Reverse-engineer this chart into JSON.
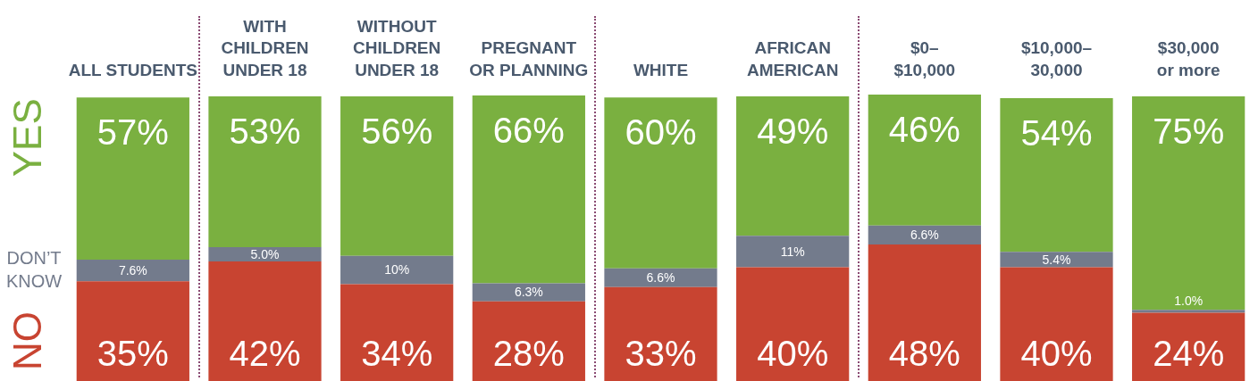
{
  "chart_data": {
    "type": "bar",
    "stacked": true,
    "categories": [
      "ALL STUDENTS",
      "WITH\nCHILDREN\nUNDER 18",
      "WITHOUT\nCHILDREN\nUNDER 18",
      "PREGNANT\nOR PLANNING",
      "WHITE",
      "AFRICAN\nAMERICAN",
      "$0–\n$10,000",
      "$10,000–\n30,000",
      "$30,000\nor more"
    ],
    "series": [
      {
        "name": "NO",
        "color": "#c84431",
        "values": [
          35,
          42,
          34,
          28,
          33,
          40,
          48,
          40,
          24
        ],
        "value_labels": [
          "35%",
          "42%",
          "34%",
          "28%",
          "33%",
          "40%",
          "48%",
          "40%",
          "24%"
        ]
      },
      {
        "name": "DON’T\nKNOW",
        "color": "#737b8c",
        "values": [
          7.6,
          5.0,
          10,
          6.3,
          6.6,
          11,
          6.6,
          5.4,
          1.0
        ],
        "value_labels": [
          "7.6%",
          "5.0%",
          "10%",
          "6.3%",
          "6.6%",
          "11%",
          "6.6%",
          "5.4%",
          "1.0%"
        ]
      },
      {
        "name": "YES",
        "color": "#7ab040",
        "values": [
          57,
          53,
          56,
          66,
          60,
          49,
          46,
          54,
          75
        ],
        "value_labels": [
          "57%",
          "53%",
          "56%",
          "66%",
          "60%",
          "49%",
          "46%",
          "54%",
          "75%"
        ]
      }
    ],
    "ylim": [
      0,
      100.6
    ],
    "tick_labels": "x",
    "grid": false,
    "legend": false
  }
}
